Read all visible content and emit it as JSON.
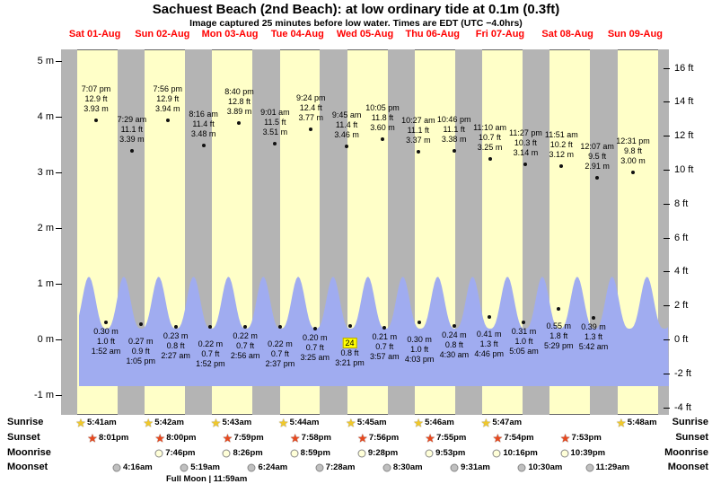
{
  "title": "Sachuest Beach (2nd Beach): at low ordinary tide at 0.1m (0.3ft)",
  "subtitle": "Image captured 25 minutes before low water. Times are EDT (UTC −4.0hrs)",
  "colors": {
    "plot_bg": "#ffffc8",
    "night_band": "#b4b4b4",
    "tide_fill": "#a0acf0",
    "day_label": "#ff0000",
    "highlight": "#ffff00",
    "sunrise_star": "#f0c82a",
    "sunset_star": "#e8481e",
    "moonrise_disc": "#ffffd8",
    "moonset_disc": "#c0c0c0"
  },
  "chart_data": {
    "type": "area",
    "title": "Sachuest Beach (2nd Beach): at low ordinary tide at 0.1m (0.3ft)",
    "subtitle": "Image captured 25 minutes before low water. Times are EDT (UTC −4.0hrs)",
    "y_axis_left_unit": "m",
    "y_axis_right_unit": "ft",
    "y_axis_left_m": [
      5,
      4,
      3,
      2,
      1,
      0,
      -1
    ],
    "y_axis_right_ft": [
      16,
      14,
      12,
      10,
      8,
      6,
      4,
      2,
      0,
      -2,
      -4
    ],
    "y_range_m": [
      -1.4,
      5.2
    ],
    "x_axis_days": [
      "Sat 01-Aug",
      "Sun 02-Aug",
      "Mon 03-Aug",
      "Tue 04-Aug",
      "Wed 05-Aug",
      "Thu 06-Aug",
      "Fri 07-Aug",
      "Sat 08-Aug",
      "Sun 09-Aug"
    ],
    "high_tides": [
      {
        "time": "7:07 pm",
        "ft": "12.9 ft",
        "m": "3.93 m",
        "value_m": 3.93
      },
      {
        "time": "7:29 am",
        "ft": "11.1 ft",
        "m": "3.39 m",
        "value_m": 3.39
      },
      {
        "time": "7:56 pm",
        "ft": "12.9 ft",
        "m": "3.94 m",
        "value_m": 3.94
      },
      {
        "time": "8:16 am",
        "ft": "11.4 ft",
        "m": "3.48 m",
        "value_m": 3.48
      },
      {
        "time": "8:40 pm",
        "ft": "12.8 ft",
        "m": "3.89 m",
        "value_m": 3.89
      },
      {
        "time": "9:01 am",
        "ft": "11.5 ft",
        "m": "3.51 m",
        "value_m": 3.51
      },
      {
        "time": "9:24 pm",
        "ft": "12.4 ft",
        "m": "3.77 m",
        "value_m": 3.77
      },
      {
        "time": "9:45 am",
        "ft": "11.4 ft",
        "m": "3.46 m",
        "value_m": 3.46
      },
      {
        "time": "10:05 pm",
        "ft": "11.8 ft",
        "m": "3.60 m",
        "value_m": 3.6
      },
      {
        "time": "10:27 am",
        "ft": "11.1 ft",
        "m": "3.37 m",
        "value_m": 3.37
      },
      {
        "time": "10:46 pm",
        "ft": "11.1 ft",
        "m": "3.38 m",
        "value_m": 3.38
      },
      {
        "time": "11:10 am",
        "ft": "10.7 ft",
        "m": "3.25 m",
        "value_m": 3.25
      },
      {
        "time": "11:27 pm",
        "ft": "10.3 ft",
        "m": "3.14 m",
        "value_m": 3.14
      },
      {
        "time": "11:51 am",
        "ft": "10.2 ft",
        "m": "3.12 m",
        "value_m": 3.12
      },
      {
        "time": "12:07 am",
        "ft": "9.5 ft",
        "m": "2.91 m",
        "value_m": 2.91
      },
      {
        "time": "12:31 pm",
        "ft": "9.8 ft",
        "m": "3.00 m",
        "value_m": 3.0
      }
    ],
    "low_tides": [
      {
        "m": "0.30 m",
        "ft": "1.0 ft",
        "time": "1:52 am",
        "value_m": 0.3,
        "highlighted": false
      },
      {
        "m": "0.27 m",
        "ft": "0.9 ft",
        "time": "1:05 pm",
        "value_m": 0.27,
        "highlighted": false
      },
      {
        "m": "0.23 m",
        "ft": "0.8 ft",
        "time": "2:27 am",
        "value_m": 0.23,
        "highlighted": false
      },
      {
        "m": "0.22 m",
        "ft": "0.7 ft",
        "time": "1:52 pm",
        "value_m": 0.22,
        "highlighted": false
      },
      {
        "m": "0.22 m",
        "ft": "0.7 ft",
        "time": "2:56 am",
        "value_m": 0.22,
        "highlighted": false
      },
      {
        "m": "0.22 m",
        "ft": "0.7 ft",
        "time": "2:37 pm",
        "value_m": 0.22,
        "highlighted": false
      },
      {
        "m": "0.20 m",
        "ft": "0.7 ft",
        "time": "3:25 am",
        "value_m": 0.2,
        "highlighted": false
      },
      {
        "m": "24",
        "ft": "0.8 ft",
        "time": "3:21 pm",
        "value_m": 0.24,
        "highlighted": true
      },
      {
        "m": "0.21 m",
        "ft": "0.7 ft",
        "time": "3:57 am",
        "value_m": 0.21,
        "highlighted": false
      },
      {
        "m": "0.30 m",
        "ft": "1.0 ft",
        "time": "4:03 pm",
        "value_m": 0.3,
        "highlighted": false
      },
      {
        "m": "0.24 m",
        "ft": "0.8 ft",
        "time": "4:30 am",
        "value_m": 0.24,
        "highlighted": false
      },
      {
        "m": "0.41 m",
        "ft": "1.3 ft",
        "time": "4:46 pm",
        "value_m": 0.41,
        "highlighted": false
      },
      {
        "m": "0.31 m",
        "ft": "1.0 ft",
        "time": "5:05 am",
        "value_m": 0.31,
        "highlighted": false
      },
      {
        "m": "0.55 m",
        "ft": "1.8 ft",
        "time": "5:29 pm",
        "value_m": 0.55,
        "highlighted": false
      },
      {
        "m": "0.39 m",
        "ft": "1.3 ft",
        "time": "5:42 am",
        "value_m": 0.39,
        "highlighted": false
      }
    ],
    "astro": {
      "sunrise": {
        "label": "Sunrise",
        "times": [
          "5:41am",
          "5:42am",
          "5:43am",
          "5:44am",
          "5:45am",
          "5:46am",
          "5:47am",
          "5:48am"
        ]
      },
      "sunset": {
        "label": "Sunset",
        "times": [
          "8:01pm",
          "8:00pm",
          "7:59pm",
          "7:58pm",
          "7:56pm",
          "7:55pm",
          "7:54pm",
          "7:53pm"
        ]
      },
      "moonrise": {
        "label": "Moonrise",
        "times": [
          "7:46pm",
          "8:26pm",
          "8:59pm",
          "9:28pm",
          "9:53pm",
          "10:16pm",
          "10:39pm"
        ]
      },
      "moonset": {
        "label": "Moonset",
        "times": [
          "4:16am",
          "5:19am",
          "6:24am",
          "7:28am",
          "8:30am",
          "9:31am",
          "10:30am",
          "11:29am"
        ]
      },
      "full_moon": "Full Moon | 11:59am"
    }
  }
}
